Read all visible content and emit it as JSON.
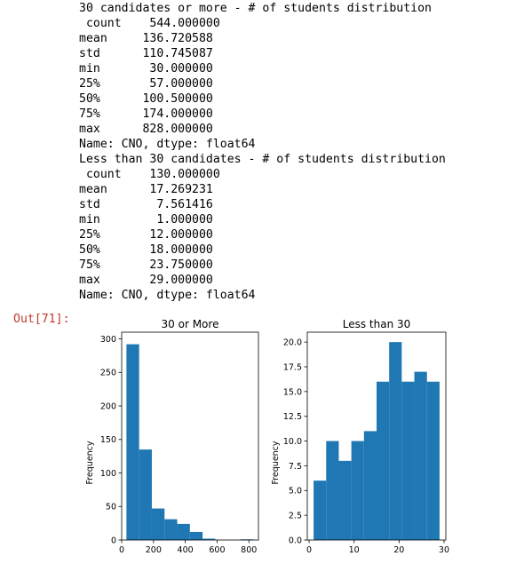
{
  "output_lines": [
    "30 candidates or more - # of students distribution",
    " count    544.000000",
    "mean     136.720588",
    "std      110.745087",
    "min       30.000000",
    "25%       57.000000",
    "50%      100.500000",
    "75%      174.000000",
    "max      828.000000",
    "Name: CNO, dtype: float64",
    "Less than 30 candidates - # of students distribution",
    " count    130.000000",
    "mean      17.269231",
    "std        7.561416",
    "min        1.000000",
    "25%       12.000000",
    "50%       18.000000",
    "75%       23.750000",
    "max       29.000000",
    "Name: CNO, dtype: float64"
  ],
  "out_prompt": "Out[71]:",
  "chart_data": [
    {
      "type": "bar",
      "title": "30 or More",
      "xlabel": "",
      "ylabel": "Frequency",
      "bin_edges": [
        30,
        109.8,
        189.6,
        269.4,
        349.2,
        429,
        508.8,
        588.6,
        668.4,
        748.2,
        828
      ],
      "values": [
        292,
        135,
        47,
        31,
        24,
        12,
        2,
        0,
        0,
        1
      ],
      "xlim": [
        0,
        860
      ],
      "ylim": [
        0,
        310
      ],
      "xticks": [
        0,
        200,
        400,
        600,
        800
      ],
      "yticks": [
        0,
        50,
        100,
        150,
        200,
        250,
        300
      ],
      "ytick_labels": [
        "0",
        "50",
        "100",
        "150",
        "200",
        "250",
        "300"
      ],
      "bar_color": "#1f77b4",
      "grid": false
    },
    {
      "type": "bar",
      "title": "Less than 30",
      "xlabel": "",
      "ylabel": "Frequency",
      "bin_edges": [
        1,
        3.8,
        6.6,
        9.4,
        12.2,
        15,
        17.8,
        20.6,
        23.4,
        26.2,
        29
      ],
      "values": [
        6,
        10,
        8,
        10,
        11,
        16,
        20,
        16,
        17,
        16
      ],
      "xlim": [
        -0.4,
        30.4
      ],
      "ylim": [
        0,
        21
      ],
      "xticks": [
        0,
        10,
        20,
        30
      ],
      "yticks": [
        0,
        2.5,
        5,
        7.5,
        10,
        12.5,
        15,
        17.5,
        20
      ],
      "ytick_labels": [
        "0.0",
        "2.5",
        "5.0",
        "7.5",
        "10.0",
        "12.5",
        "15.0",
        "17.5",
        "20.0"
      ],
      "bar_color": "#1f77b4",
      "grid": false
    }
  ]
}
